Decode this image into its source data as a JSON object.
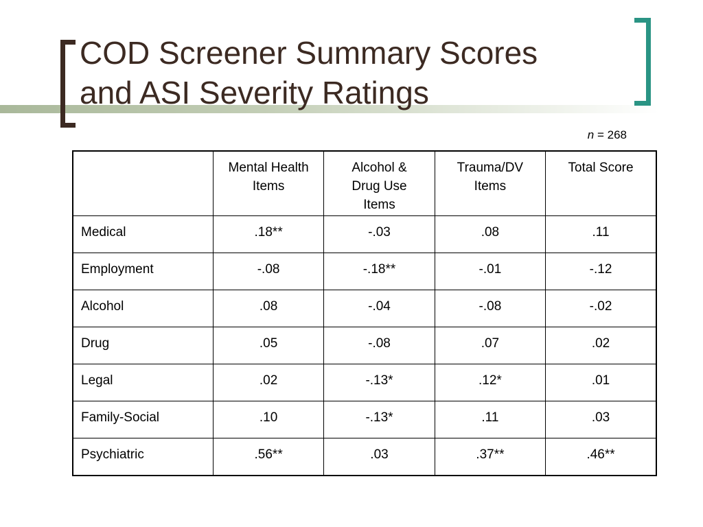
{
  "title": {
    "line1": "COD Screener Summary Scores",
    "line2": "and ASI Severity Ratings"
  },
  "sample_size": {
    "variable": "n",
    "rest": " = 268"
  },
  "colors": {
    "title_text": "#3c2a22",
    "left_bracket": "#3c2a22",
    "right_bracket": "#2a9484",
    "accent_line": "#a9b89a"
  },
  "table": {
    "headers": [
      {
        "lines": [
          ""
        ]
      },
      {
        "lines": [
          "Mental Health",
          "Items"
        ]
      },
      {
        "lines": [
          "Alcohol &",
          "Drug Use",
          "Items"
        ]
      },
      {
        "lines": [
          "Trauma/DV",
          "Items"
        ]
      },
      {
        "lines": [
          "Total Score"
        ]
      }
    ],
    "rows": [
      {
        "label": "Medical",
        "cells": [
          ".18**",
          "-.03",
          ".08",
          ".11"
        ],
        "bold": [
          false,
          false,
          false,
          false
        ]
      },
      {
        "label": "Employment",
        "cells": [
          "-.08",
          "-.18**",
          "-.01",
          "-.12"
        ],
        "bold": [
          false,
          false,
          false,
          false
        ]
      },
      {
        "label": "Alcohol",
        "cells": [
          ".08",
          "-.04",
          "-.08",
          "-.02"
        ],
        "bold": [
          false,
          true,
          false,
          false
        ]
      },
      {
        "label": "Drug",
        "cells": [
          ".05",
          "-.08",
          ".07",
          ".02"
        ],
        "bold": [
          false,
          true,
          false,
          false
        ]
      },
      {
        "label": "Legal",
        "cells": [
          ".02",
          "-.13*",
          ".12*",
          ".01"
        ],
        "bold": [
          false,
          false,
          false,
          false
        ]
      },
      {
        "label": "Family-Social",
        "cells": [
          ".10",
          "-.13*",
          ".11",
          ".03"
        ],
        "bold": [
          false,
          false,
          false,
          false
        ]
      },
      {
        "label": "Psychiatric",
        "cells": [
          ".56**",
          ".03",
          ".37**",
          ".46**"
        ],
        "bold": [
          true,
          false,
          true,
          false
        ]
      }
    ]
  }
}
